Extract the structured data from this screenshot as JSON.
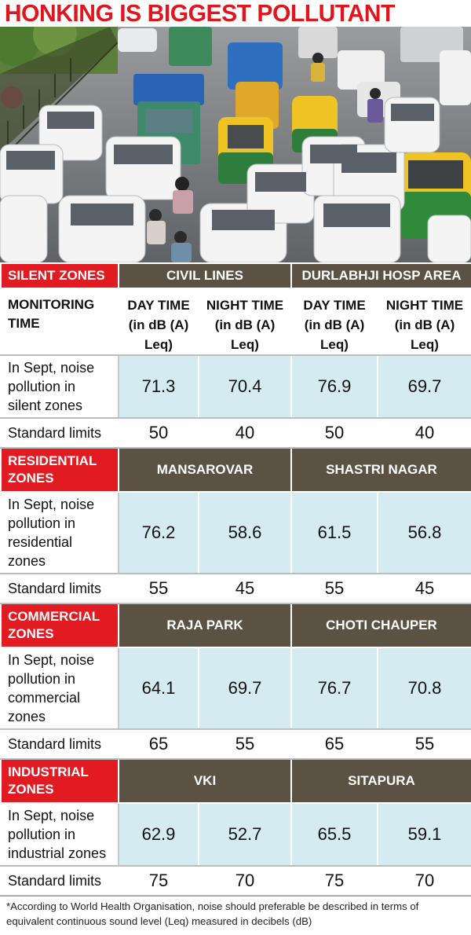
{
  "title": "HONKING IS BIGGEST POLLUTANT",
  "header": {
    "monitoring_time": [
      "MONITORING",
      "TIME"
    ],
    "day_time": [
      "DAY TIME",
      "(in dB (A)",
      "Leq)"
    ],
    "night_time": [
      "NIGHT TIME",
      "(in dB (A)",
      "Leq)"
    ]
  },
  "standard_label": "Standard limits",
  "zones": [
    {
      "name": [
        "SILENT ZONES"
      ],
      "areas": [
        "CIVIL LINES",
        "DURLABHJI HOSP AREA"
      ],
      "measure_label": [
        "In Sept, noise",
        "pollution in",
        "silent zones"
      ],
      "values": [
        "71.3",
        "70.4",
        "76.9",
        "69.7"
      ],
      "limits": [
        "50",
        "40",
        "50",
        "40"
      ]
    },
    {
      "name": [
        "RESIDENTIAL",
        "ZONES"
      ],
      "areas": [
        "MANSAROVAR",
        "SHASTRI NAGAR"
      ],
      "measure_label": [
        "In Sept, noise",
        "pollution in",
        "residential",
        "zones"
      ],
      "values": [
        "76.2",
        "58.6",
        "61.5",
        "56.8"
      ],
      "limits": [
        "55",
        "45",
        "55",
        "45"
      ]
    },
    {
      "name": [
        "COMMERCIAL",
        "ZONES"
      ],
      "areas": [
        "RAJA PARK",
        "CHOTI CHAUPER"
      ],
      "measure_label": [
        "In Sept, noise",
        "pollution in",
        "commercial",
        "zones"
      ],
      "values": [
        "64.1",
        "69.7",
        "76.7",
        "70.8"
      ],
      "limits": [
        "65",
        "55",
        "65",
        "55"
      ]
    },
    {
      "name": [
        "INDUSTRIAL",
        "ZONES"
      ],
      "areas": [
        "VKI",
        "SITAPURA"
      ],
      "measure_label": [
        "In Sept, noise",
        "pollution in",
        "industrial zones"
      ],
      "values": [
        "62.9",
        "52.7",
        "65.5",
        "59.1"
      ],
      "limits": [
        "75",
        "70",
        "75",
        "70"
      ]
    }
  ],
  "footnote": "*According to World Health Organisation, noise should preferable be described in terms of equivalent continuous sound level (Leq) measured in decibels (dB)",
  "colors": {
    "title": "#e0161e",
    "zone_label_bg": "#e21b23",
    "area_header_bg": "#5b5243",
    "value_cell_bg": "#d4ebf1"
  }
}
